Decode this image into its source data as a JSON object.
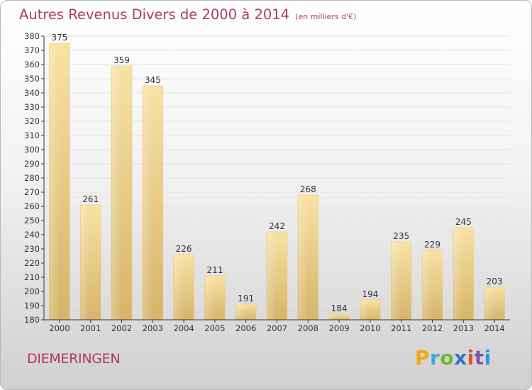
{
  "header": {
    "title": "Autres Revenus Divers de 2000 à 2014",
    "unit_note": "(en milliers d'€)"
  },
  "footer": {
    "location": "DIEMERINGEN",
    "logo_text": "Proxiti"
  },
  "colors": {
    "title": "#b03a5b",
    "bar_light": "#f7dd9a",
    "bar_dark": "#d8b86e",
    "axis": "#333333"
  },
  "chart_data": {
    "type": "bar",
    "title": "Autres Revenus Divers de 2000 à 2014",
    "xlabel": "",
    "ylabel": "",
    "categories": [
      "2000",
      "2001",
      "2002",
      "2003",
      "2004",
      "2005",
      "2006",
      "2007",
      "2008",
      "2009",
      "2010",
      "2011",
      "2012",
      "2013",
      "2014"
    ],
    "values": [
      375,
      261,
      359,
      345,
      226,
      211,
      191,
      242,
      268,
      184,
      194,
      235,
      229,
      245,
      203
    ],
    "ylim": [
      180,
      380
    ],
    "ytick_step": 10,
    "grid": true,
    "legend": "none"
  }
}
